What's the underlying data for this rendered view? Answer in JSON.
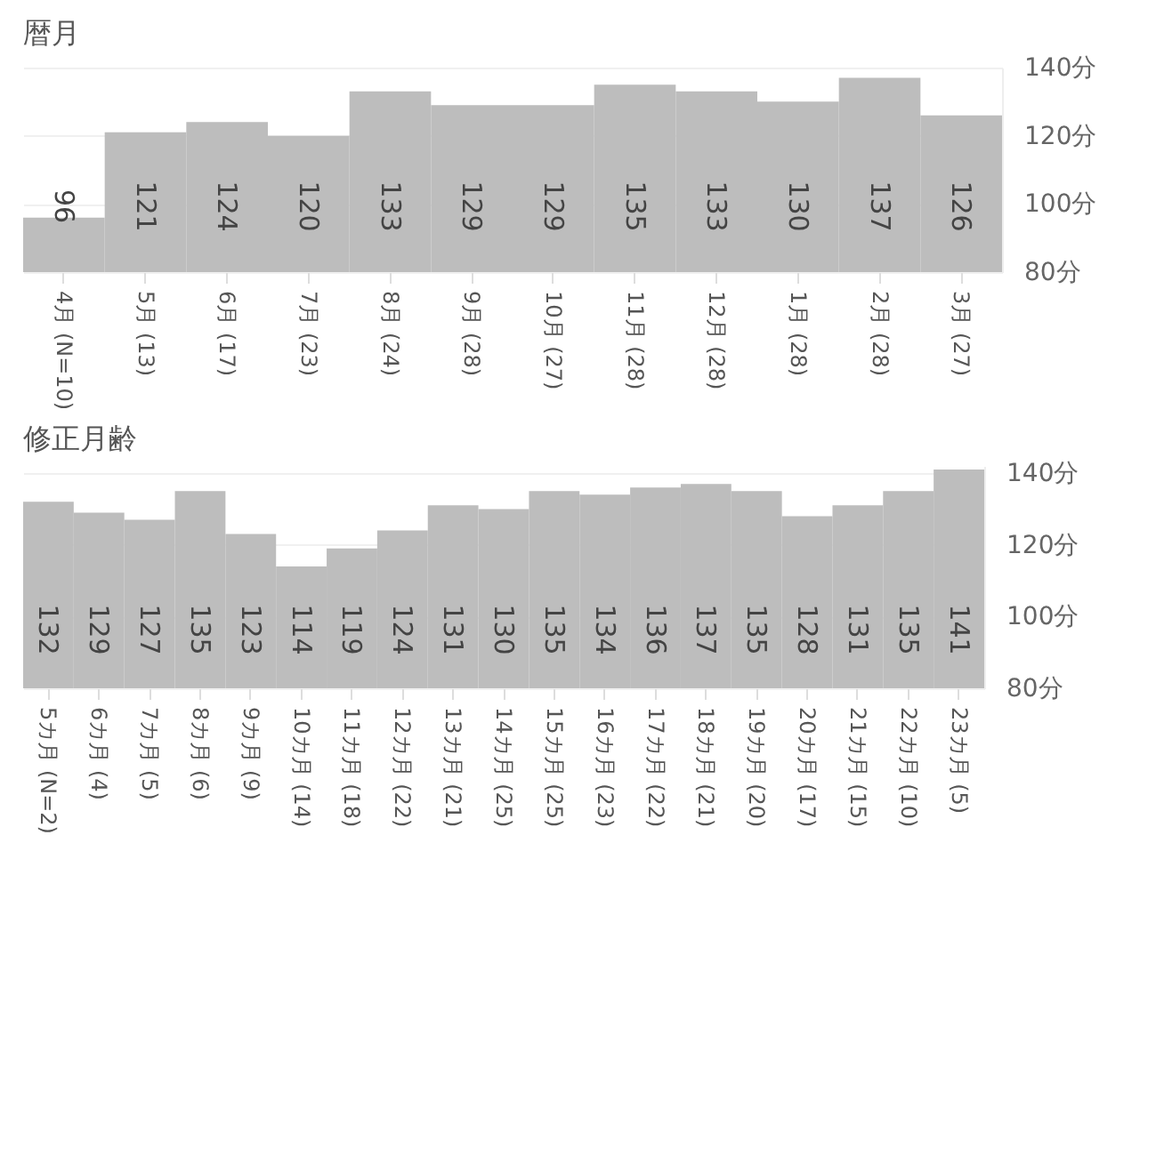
{
  "chart_data": [
    {
      "type": "bar",
      "title": "暦月",
      "categories": [
        "4月 (N=10)",
        "5月 (13)",
        "6月 (17)",
        "7月 (23)",
        "8月 (24)",
        "9月 (28)",
        "10月 (27)",
        "11月 (28)",
        "12月 (28)",
        "1月 (28)",
        "2月 (28)",
        "3月 (27)"
      ],
      "values": [
        96,
        121,
        124,
        120,
        133,
        129,
        129,
        135,
        133,
        130,
        137,
        126
      ],
      "color": "#bdbdbd",
      "ylim": [
        80,
        140
      ],
      "yticks": [
        {
          "value": 80,
          "label": "80分"
        },
        {
          "value": 100,
          "label": "100分"
        },
        {
          "value": 120,
          "label": "120分"
        },
        {
          "value": 140,
          "label": "140分"
        }
      ],
      "grid": "y",
      "data_labels": true
    },
    {
      "type": "bar",
      "title": "修正月齢",
      "categories": [
        "5カ月 (N=2)",
        "6カ月 (4)",
        "7カ月 (5)",
        "8カ月 (6)",
        "9カ月 (9)",
        "10カ月 (14)",
        "11カ月 (18)",
        "12カ月 (22)",
        "13カ月 (21)",
        "14カ月 (25)",
        "15カ月 (25)",
        "16カ月 (23)",
        "17カ月 (22)",
        "18カ月 (21)",
        "19カ月 (20)",
        "20カ月 (17)",
        "21カ月 (15)",
        "22カ月 (10)",
        "23カ月 (5)"
      ],
      "values": [
        132,
        129,
        127,
        135,
        123,
        114,
        119,
        124,
        131,
        130,
        135,
        134,
        136,
        137,
        135,
        128,
        131,
        135,
        141
      ],
      "color": "#bdbdbd",
      "ylim": [
        80,
        142
      ],
      "yticks": [
        {
          "value": 80,
          "label": "80分"
        },
        {
          "value": 100,
          "label": "100分"
        },
        {
          "value": 120,
          "label": "120分"
        },
        {
          "value": 140,
          "label": "140分"
        }
      ],
      "grid": "y",
      "data_labels": true
    }
  ]
}
